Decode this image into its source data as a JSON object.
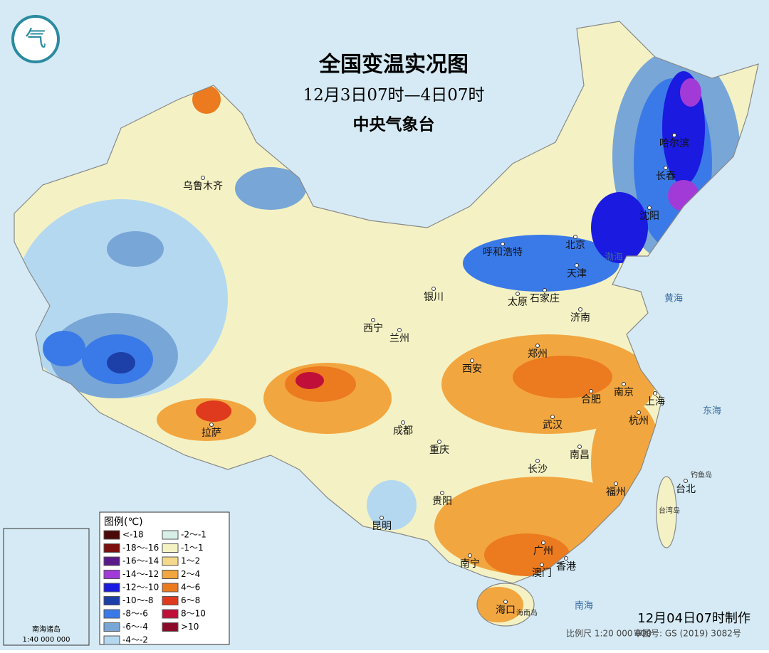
{
  "header": {
    "title": "全国变温实况图",
    "subtitle": "12月3日07时—4日07时",
    "source": "中央气象台"
  },
  "cities": [
    "乌鲁木齐",
    "哈尔滨",
    "长春",
    "沈阳",
    "呼和浩特",
    "北京",
    "天津",
    "石家庄",
    "太原",
    "银川",
    "济南",
    "西宁",
    "兰州",
    "郑州",
    "西安",
    "南京",
    "合肥",
    "上海",
    "拉萨",
    "成都",
    "武汉",
    "杭州",
    "重庆",
    "南昌",
    "长沙",
    "福州",
    "台北",
    "贵阳",
    "昆明",
    "南宁",
    "广州",
    "澳门",
    "香港",
    "海口"
  ],
  "seas": [
    "渤海",
    "黄海",
    "东海",
    "南海"
  ],
  "islands": [
    "台湾岛",
    "海南岛",
    "钓鱼岛"
  ],
  "legend": {
    "title": "图例(℃)",
    "items": [
      {
        "label": "<-18",
        "color": "#4a0a0a"
      },
      {
        "label": "-18～-16",
        "color": "#7a1010"
      },
      {
        "label": "-16～-14",
        "color": "#5a1a8a"
      },
      {
        "label": "-14～-12",
        "color": "#a23ad8"
      },
      {
        "label": "-12～-10",
        "color": "#1a1ae0"
      },
      {
        "label": "-10～-8",
        "color": "#1d3fa8"
      },
      {
        "label": "-8～-6",
        "color": "#3a7ae8"
      },
      {
        "label": "-6～-4",
        "color": "#78a6d6"
      },
      {
        "label": "-4～-2",
        "color": "#b4d8f0"
      },
      {
        "label": "-2～-1",
        "color": "#d6f0e8"
      },
      {
        "label": "-1～1",
        "color": "#f4f2c4"
      },
      {
        "label": "1～2",
        "color": "#f5d98a"
      },
      {
        "label": "2～4",
        "color": "#f2a640"
      },
      {
        "label": "4～6",
        "color": "#ec7a1e"
      },
      {
        "label": "6～8",
        "color": "#e03a1e"
      },
      {
        "label": "8～10",
        "color": "#c0103a"
      },
      {
        "label": ">10",
        "color": "#8a0a2a"
      }
    ]
  },
  "inset": {
    "title": "南海诸岛",
    "scale": "1:40 000 000"
  },
  "footer": {
    "scale": "比例尺 1:20 000 000",
    "map_number": "审图号: GS (2019) 3082号",
    "made": "12月04日07时制作"
  }
}
